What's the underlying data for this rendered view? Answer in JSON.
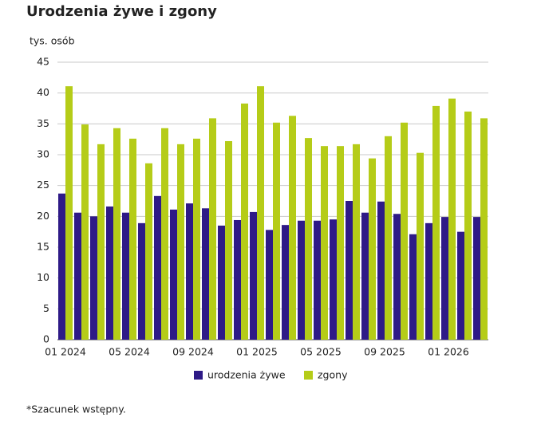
{
  "chart_data": {
    "type": "bar",
    "title": "Urodzenia żywe i zgony",
    "y_label": "tys. osób",
    "categories": [
      "01 2024",
      null,
      null,
      null,
      "05 2024",
      null,
      null,
      null,
      "09 2024",
      null,
      null,
      null,
      "01 2025",
      null,
      null,
      null,
      "05 2025",
      null,
      null,
      null,
      "09 2025",
      null,
      null,
      null,
      "01 2026",
      null,
      null
    ],
    "series": [
      {
        "name": "urodzenia żywe",
        "color": "#2e1a87",
        "values": [
          23.7,
          20.6,
          20.0,
          21.6,
          20.6,
          18.9,
          23.3,
          21.1,
          22.1,
          21.3,
          18.5,
          19.4,
          20.7,
          17.8,
          18.6,
          19.3,
          19.3,
          19.5,
          22.5,
          20.6,
          22.4,
          20.4,
          17.1,
          18.9,
          19.9,
          17.5,
          19.9
        ]
      },
      {
        "name": "zgony",
        "color": "#b5cc18",
        "values": [
          41.1,
          34.9,
          31.7,
          34.3,
          32.6,
          28.6,
          34.3,
          31.7,
          32.6,
          35.9,
          32.2,
          38.3,
          41.1,
          35.2,
          36.3,
          32.7,
          31.4,
          31.4,
          31.7,
          29.4,
          33.0,
          35.2,
          30.3,
          37.9,
          39.1,
          37.0,
          35.9
        ]
      }
    ],
    "ylim": [
      0,
      45
    ],
    "yticks": [
      0,
      5,
      10,
      15,
      20,
      25,
      30,
      35,
      40,
      45
    ],
    "grid": true,
    "note": "*Szacunek wstępny."
  }
}
